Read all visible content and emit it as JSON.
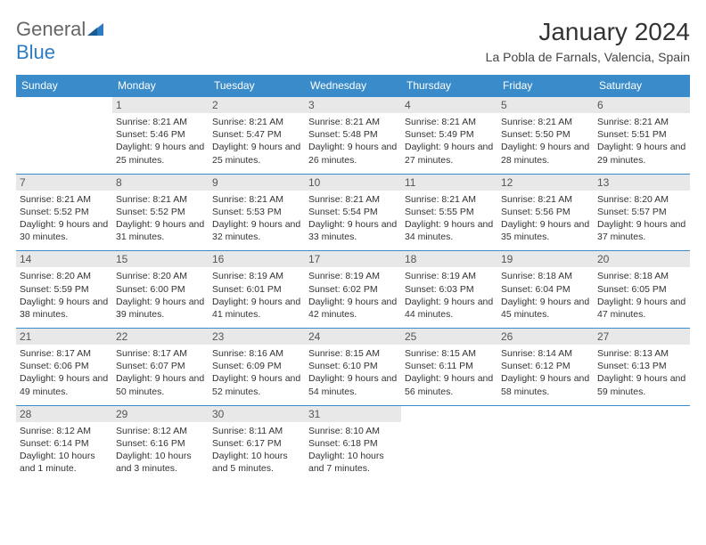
{
  "brand": {
    "part1": "General",
    "part2": "Blue"
  },
  "title": "January 2024",
  "location": "La Pobla de Farnals, Valencia, Spain",
  "colors": {
    "header_bg": "#3a8bc9",
    "header_text": "#ffffff",
    "border": "#3a8bc9",
    "daynum_bg": "#e8e8e8",
    "logo_blue": "#2d7cc1",
    "logo_gray": "#666666"
  },
  "day_headers": [
    "Sunday",
    "Monday",
    "Tuesday",
    "Wednesday",
    "Thursday",
    "Friday",
    "Saturday"
  ],
  "weeks": [
    [
      {
        "num": "",
        "sunrise": "",
        "sunset": "",
        "daylight": ""
      },
      {
        "num": "1",
        "sunrise": "Sunrise: 8:21 AM",
        "sunset": "Sunset: 5:46 PM",
        "daylight": "Daylight: 9 hours and 25 minutes."
      },
      {
        "num": "2",
        "sunrise": "Sunrise: 8:21 AM",
        "sunset": "Sunset: 5:47 PM",
        "daylight": "Daylight: 9 hours and 25 minutes."
      },
      {
        "num": "3",
        "sunrise": "Sunrise: 8:21 AM",
        "sunset": "Sunset: 5:48 PM",
        "daylight": "Daylight: 9 hours and 26 minutes."
      },
      {
        "num": "4",
        "sunrise": "Sunrise: 8:21 AM",
        "sunset": "Sunset: 5:49 PM",
        "daylight": "Daylight: 9 hours and 27 minutes."
      },
      {
        "num": "5",
        "sunrise": "Sunrise: 8:21 AM",
        "sunset": "Sunset: 5:50 PM",
        "daylight": "Daylight: 9 hours and 28 minutes."
      },
      {
        "num": "6",
        "sunrise": "Sunrise: 8:21 AM",
        "sunset": "Sunset: 5:51 PM",
        "daylight": "Daylight: 9 hours and 29 minutes."
      }
    ],
    [
      {
        "num": "7",
        "sunrise": "Sunrise: 8:21 AM",
        "sunset": "Sunset: 5:52 PM",
        "daylight": "Daylight: 9 hours and 30 minutes."
      },
      {
        "num": "8",
        "sunrise": "Sunrise: 8:21 AM",
        "sunset": "Sunset: 5:52 PM",
        "daylight": "Daylight: 9 hours and 31 minutes."
      },
      {
        "num": "9",
        "sunrise": "Sunrise: 8:21 AM",
        "sunset": "Sunset: 5:53 PM",
        "daylight": "Daylight: 9 hours and 32 minutes."
      },
      {
        "num": "10",
        "sunrise": "Sunrise: 8:21 AM",
        "sunset": "Sunset: 5:54 PM",
        "daylight": "Daylight: 9 hours and 33 minutes."
      },
      {
        "num": "11",
        "sunrise": "Sunrise: 8:21 AM",
        "sunset": "Sunset: 5:55 PM",
        "daylight": "Daylight: 9 hours and 34 minutes."
      },
      {
        "num": "12",
        "sunrise": "Sunrise: 8:21 AM",
        "sunset": "Sunset: 5:56 PM",
        "daylight": "Daylight: 9 hours and 35 minutes."
      },
      {
        "num": "13",
        "sunrise": "Sunrise: 8:20 AM",
        "sunset": "Sunset: 5:57 PM",
        "daylight": "Daylight: 9 hours and 37 minutes."
      }
    ],
    [
      {
        "num": "14",
        "sunrise": "Sunrise: 8:20 AM",
        "sunset": "Sunset: 5:59 PM",
        "daylight": "Daylight: 9 hours and 38 minutes."
      },
      {
        "num": "15",
        "sunrise": "Sunrise: 8:20 AM",
        "sunset": "Sunset: 6:00 PM",
        "daylight": "Daylight: 9 hours and 39 minutes."
      },
      {
        "num": "16",
        "sunrise": "Sunrise: 8:19 AM",
        "sunset": "Sunset: 6:01 PM",
        "daylight": "Daylight: 9 hours and 41 minutes."
      },
      {
        "num": "17",
        "sunrise": "Sunrise: 8:19 AM",
        "sunset": "Sunset: 6:02 PM",
        "daylight": "Daylight: 9 hours and 42 minutes."
      },
      {
        "num": "18",
        "sunrise": "Sunrise: 8:19 AM",
        "sunset": "Sunset: 6:03 PM",
        "daylight": "Daylight: 9 hours and 44 minutes."
      },
      {
        "num": "19",
        "sunrise": "Sunrise: 8:18 AM",
        "sunset": "Sunset: 6:04 PM",
        "daylight": "Daylight: 9 hours and 45 minutes."
      },
      {
        "num": "20",
        "sunrise": "Sunrise: 8:18 AM",
        "sunset": "Sunset: 6:05 PM",
        "daylight": "Daylight: 9 hours and 47 minutes."
      }
    ],
    [
      {
        "num": "21",
        "sunrise": "Sunrise: 8:17 AM",
        "sunset": "Sunset: 6:06 PM",
        "daylight": "Daylight: 9 hours and 49 minutes."
      },
      {
        "num": "22",
        "sunrise": "Sunrise: 8:17 AM",
        "sunset": "Sunset: 6:07 PM",
        "daylight": "Daylight: 9 hours and 50 minutes."
      },
      {
        "num": "23",
        "sunrise": "Sunrise: 8:16 AM",
        "sunset": "Sunset: 6:09 PM",
        "daylight": "Daylight: 9 hours and 52 minutes."
      },
      {
        "num": "24",
        "sunrise": "Sunrise: 8:15 AM",
        "sunset": "Sunset: 6:10 PM",
        "daylight": "Daylight: 9 hours and 54 minutes."
      },
      {
        "num": "25",
        "sunrise": "Sunrise: 8:15 AM",
        "sunset": "Sunset: 6:11 PM",
        "daylight": "Daylight: 9 hours and 56 minutes."
      },
      {
        "num": "26",
        "sunrise": "Sunrise: 8:14 AM",
        "sunset": "Sunset: 6:12 PM",
        "daylight": "Daylight: 9 hours and 58 minutes."
      },
      {
        "num": "27",
        "sunrise": "Sunrise: 8:13 AM",
        "sunset": "Sunset: 6:13 PM",
        "daylight": "Daylight: 9 hours and 59 minutes."
      }
    ],
    [
      {
        "num": "28",
        "sunrise": "Sunrise: 8:12 AM",
        "sunset": "Sunset: 6:14 PM",
        "daylight": "Daylight: 10 hours and 1 minute."
      },
      {
        "num": "29",
        "sunrise": "Sunrise: 8:12 AM",
        "sunset": "Sunset: 6:16 PM",
        "daylight": "Daylight: 10 hours and 3 minutes."
      },
      {
        "num": "30",
        "sunrise": "Sunrise: 8:11 AM",
        "sunset": "Sunset: 6:17 PM",
        "daylight": "Daylight: 10 hours and 5 minutes."
      },
      {
        "num": "31",
        "sunrise": "Sunrise: 8:10 AM",
        "sunset": "Sunset: 6:18 PM",
        "daylight": "Daylight: 10 hours and 7 minutes."
      },
      {
        "num": "",
        "sunrise": "",
        "sunset": "",
        "daylight": ""
      },
      {
        "num": "",
        "sunrise": "",
        "sunset": "",
        "daylight": ""
      },
      {
        "num": "",
        "sunrise": "",
        "sunset": "",
        "daylight": ""
      }
    ]
  ]
}
